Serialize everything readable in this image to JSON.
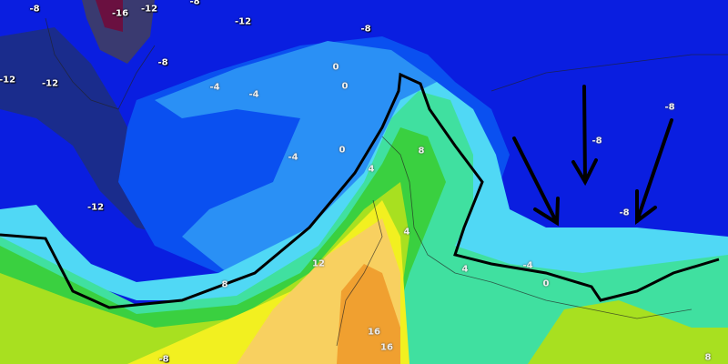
{
  "map": {
    "type": "temperature isotherm forecast map",
    "colors": {
      "deep_blue": "#0a1ee0",
      "navy": "#1a2c8c",
      "purple_grey": "#3a3a70",
      "maroon": "#6a1040",
      "mid_blue": "#0a50f0",
      "light_blue": "#2a90f5",
      "cyan": "#50d8f5",
      "aqua_green": "#40e0a0",
      "green": "#3ad040",
      "lime": "#a8e020",
      "yellow": "#f2f020",
      "light_orange": "#f8d060",
      "orange": "#f0a030",
      "zero_isotherm": "#000000",
      "arrows": "#000000"
    },
    "zero_isotherm_line": true,
    "arrows_count": 4,
    "labels": [
      "-8",
      "-16",
      "-12",
      "-12",
      "-8",
      "-12",
      "-12",
      "-8",
      "-4",
      "-4",
      "0",
      "0",
      "-4",
      "-12",
      "0",
      "8",
      "4",
      "4",
      "12",
      "8",
      "4",
      "-4",
      "0",
      "16",
      "16",
      "-8",
      "-8",
      "-8",
      "-8",
      "8",
      "-8"
    ]
  }
}
